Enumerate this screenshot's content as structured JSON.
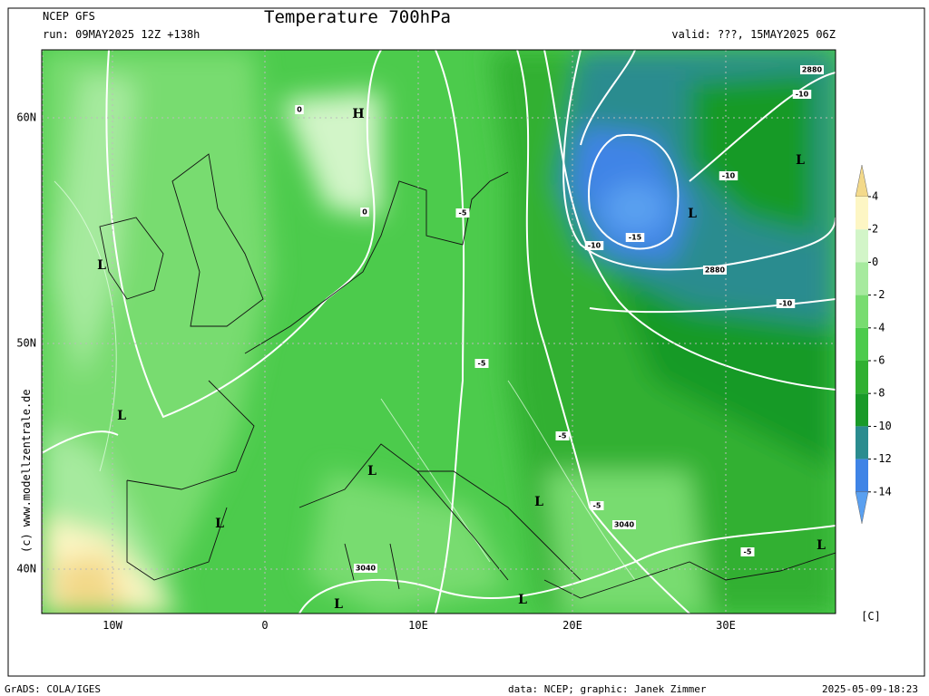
{
  "header": {
    "model": "NCEP GFS",
    "run": "run: 09MAY2025 12Z +138h",
    "title": "Temperature 700hPa",
    "valid": "valid: ???, 15MAY2025 06Z"
  },
  "map": {
    "lat_labels": [
      "60N",
      "50N",
      "40N"
    ],
    "lon_labels": [
      "10W",
      "0",
      "10E",
      "20E",
      "30E"
    ],
    "pressure_centers": [
      "H",
      "L",
      "L",
      "L",
      "L",
      "L",
      "L",
      "L",
      "L",
      "L",
      "L"
    ],
    "contour_labels": [
      "2880",
      "-10",
      "-10",
      "-10",
      "-15",
      "2880",
      "-10",
      "-5",
      "-5",
      "-5",
      "-5",
      "3040",
      "-5",
      "3040",
      "0",
      "0"
    ]
  },
  "colorbar": {
    "unit": "[C]",
    "levels": [
      4,
      2,
      0,
      -2,
      -4,
      -6,
      -8,
      -10,
      -12,
      -14
    ],
    "colors": [
      "#f3d98a",
      "#fdf6c4",
      "#d2f5c8",
      "#a6ea9e",
      "#78dc70",
      "#4ccb4c",
      "#30b031",
      "#199a28",
      "#2b8c8f",
      "#3f84e6",
      "#5aa0f0"
    ]
  },
  "copyright": "(c) www.modellzentrale.de",
  "footer": {
    "left": "GrADS: COLA/IGES",
    "center": "data: NCEP; graphic: Janek Zimmer",
    "right": "2025-05-09-18:23"
  }
}
